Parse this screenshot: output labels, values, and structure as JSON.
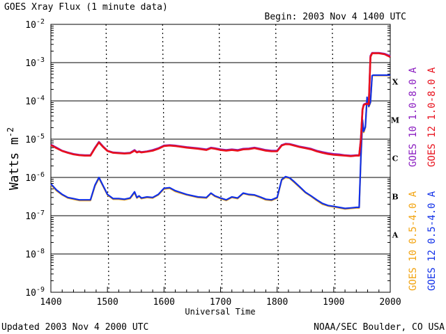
{
  "chart_data": {
    "type": "line",
    "title": "GOES Xray Flux (1 minute data)",
    "begin_label": "Begin: 2003 Nov 4 1400 UTC",
    "xlabel": "Universal Time",
    "ylabel": "Watts m",
    "ylabel_sup": "-2",
    "footer_left": "Updated 2003 Nov  4 2000 UTC",
    "footer_right": "NOAA/SEC Boulder, CO USA",
    "y_scale": "log",
    "ylim": [
      1e-09,
      0.01
    ],
    "xlim": [
      1400,
      2000
    ],
    "x_ticks": [
      "1400",
      "1500",
      "1600",
      "1700",
      "1800",
      "1900",
      "2000"
    ],
    "y_ticks": [
      {
        "base": "10",
        "exp": "-9"
      },
      {
        "base": "10",
        "exp": "-8"
      },
      {
        "base": "10",
        "exp": "-7"
      },
      {
        "base": "10",
        "exp": "-6"
      },
      {
        "base": "10",
        "exp": "-5"
      },
      {
        "base": "10",
        "exp": "-4"
      },
      {
        "base": "10",
        "exp": "-3"
      },
      {
        "base": "10",
        "exp": "-2"
      }
    ],
    "flare_classes": [
      "A",
      "B",
      "C",
      "M",
      "X"
    ],
    "grid": "horizontal lines at each decade; dashed vertical hour markers",
    "legend_placement": "right side, vertical",
    "series": [
      {
        "name": "GOES 10 0.5-4.0 A",
        "color": "#f2a30f",
        "x": [
          1400,
          1410,
          1420,
          1430,
          1440,
          1450,
          1460,
          1470,
          1478,
          1485,
          1492,
          1500,
          1510,
          1520,
          1530,
          1540,
          1548,
          1552,
          1556,
          1560,
          1570,
          1580,
          1590,
          1600,
          1610,
          1620,
          1640,
          1660,
          1675,
          1683,
          1690,
          1700,
          1710,
          1720,
          1730,
          1740,
          1750,
          1760,
          1770,
          1780,
          1790,
          1800,
          1808,
          1815,
          1822,
          1830,
          1840,
          1850,
          1860,
          1870,
          1880,
          1890,
          1900,
          1910,
          1920,
          1930,
          1940,
          1945,
          1948,
          1951,
          1953,
          1956,
          1959,
          1962,
          1965,
          1968,
          1970,
          1975,
          1980,
          1990,
          2000
        ],
        "values": [
          6.5e-07,
          4.5e-07,
          3.5e-07,
          2.9e-07,
          2.7e-07,
          2.5e-07,
          2.5e-07,
          2.5e-07,
          6e-07,
          9.5e-07,
          6e-07,
          3.5e-07,
          2.7e-07,
          2.7e-07,
          2.6e-07,
          2.8e-07,
          4e-07,
          2.9e-07,
          3.2e-07,
          2.8e-07,
          3e-07,
          2.9e-07,
          3.5e-07,
          5e-07,
          5.2e-07,
          4.3e-07,
          3.5e-07,
          3e-07,
          2.9e-07,
          3.8e-07,
          3.2e-07,
          2.8e-07,
          2.5e-07,
          3e-07,
          2.8e-07,
          3.8e-07,
          3.5e-07,
          3.4e-07,
          3e-07,
          2.6e-07,
          2.5e-07,
          2.9e-07,
          8.5e-07,
          1e-06,
          9.5e-07,
          7.5e-07,
          5.5e-07,
          4e-07,
          3.2e-07,
          2.5e-07,
          2e-07,
          1.8e-07,
          1.7e-07,
          1.6e-07,
          1.5e-07,
          1.55e-07,
          1.6e-07,
          1.6e-07,
          3e-06,
          3e-05,
          1.5e-05,
          2e-05,
          0.00012,
          7e-05,
          9e-05,
          0.00045,
          0.00046,
          0.00046,
          0.00046,
          0.00046,
          0.00046
        ]
      },
      {
        "name": "GOES 12 0.5-4.0 A",
        "color": "#1030e8",
        "x": [
          1400,
          1410,
          1420,
          1430,
          1440,
          1450,
          1460,
          1470,
          1478,
          1485,
          1492,
          1500,
          1510,
          1520,
          1530,
          1540,
          1548,
          1552,
          1556,
          1560,
          1570,
          1580,
          1590,
          1600,
          1610,
          1620,
          1640,
          1660,
          1675,
          1683,
          1690,
          1700,
          1710,
          1720,
          1730,
          1740,
          1750,
          1760,
          1770,
          1780,
          1790,
          1800,
          1808,
          1815,
          1822,
          1830,
          1840,
          1850,
          1860,
          1870,
          1880,
          1890,
          1900,
          1910,
          1920,
          1930,
          1940,
          1945,
          1948,
          1951,
          1953,
          1956,
          1959,
          1962,
          1965,
          1968,
          1970,
          1975,
          1980,
          1990,
          2000
        ],
        "values": [
          6.8e-07,
          4.7e-07,
          3.6e-07,
          3e-07,
          2.8e-07,
          2.6e-07,
          2.6e-07,
          2.6e-07,
          6.3e-07,
          1e-06,
          6.2e-07,
          3.6e-07,
          2.8e-07,
          2.8e-07,
          2.7e-07,
          2.9e-07,
          4.2e-07,
          3e-07,
          3.3e-07,
          2.9e-07,
          3.1e-07,
          3e-07,
          3.6e-07,
          5.2e-07,
          5.4e-07,
          4.5e-07,
          3.6e-07,
          3.1e-07,
          3e-07,
          3.9e-07,
          3.3e-07,
          2.9e-07,
          2.6e-07,
          3.1e-07,
          2.9e-07,
          3.9e-07,
          3.6e-07,
          3.5e-07,
          3.1e-07,
          2.7e-07,
          2.6e-07,
          3e-07,
          8.8e-07,
          1.05e-06,
          9.8e-07,
          7.8e-07,
          5.7e-07,
          4.1e-07,
          3.3e-07,
          2.6e-07,
          2.1e-07,
          1.85e-07,
          1.75e-07,
          1.65e-07,
          1.55e-07,
          1.6e-07,
          1.65e-07,
          1.65e-07,
          3.2e-06,
          3.2e-05,
          1.6e-05,
          2.1e-05,
          0.000125,
          7.2e-05,
          9.2e-05,
          0.00046,
          0.00047,
          0.00047,
          0.00047,
          0.00047,
          0.00047
        ]
      },
      {
        "name": "GOES 10 1.0-8.0 A",
        "color": "#8a1cc0",
        "x": [
          1400,
          1410,
          1420,
          1430,
          1440,
          1450,
          1460,
          1470,
          1478,
          1485,
          1492,
          1500,
          1510,
          1520,
          1530,
          1540,
          1548,
          1552,
          1556,
          1560,
          1570,
          1580,
          1590,
          1600,
          1610,
          1620,
          1640,
          1660,
          1675,
          1683,
          1690,
          1700,
          1710,
          1720,
          1730,
          1740,
          1750,
          1760,
          1770,
          1780,
          1790,
          1800,
          1808,
          1815,
          1822,
          1830,
          1840,
          1850,
          1860,
          1870,
          1880,
          1890,
          1900,
          1910,
          1920,
          1930,
          1940,
          1945,
          1948,
          1951,
          1953,
          1956,
          1959,
          1962,
          1965,
          1968,
          1970,
          1975,
          1980,
          1990,
          2000
        ],
        "values": [
          7.2e-06,
          6e-06,
          5e-06,
          4.5e-06,
          4.1e-06,
          3.9e-06,
          3.8e-06,
          3.8e-06,
          6e-06,
          8.5e-06,
          6.5e-06,
          5e-06,
          4.5e-06,
          4.4e-06,
          4.3e-06,
          4.4e-06,
          5.2e-06,
          4.6e-06,
          4.8e-06,
          4.6e-06,
          4.8e-06,
          5.2e-06,
          5.8e-06,
          6.8e-06,
          7e-06,
          6.8e-06,
          6.2e-06,
          5.8e-06,
          5.4e-06,
          6e-06,
          5.8e-06,
          5.4e-06,
          5.2e-06,
          5.4e-06,
          5.2e-06,
          5.6e-06,
          5.7e-06,
          6e-06,
          5.6e-06,
          5.2e-06,
          5e-06,
          5e-06,
          7e-06,
          7.6e-06,
          7.5e-06,
          7e-06,
          6.4e-06,
          6e-06,
          5.6e-06,
          5e-06,
          4.6e-06,
          4.3e-06,
          4.1e-06,
          4e-06,
          3.8e-06,
          3.7e-06,
          3.8e-06,
          3.8e-06,
          1e-05,
          6e-05,
          8e-05,
          8.5e-05,
          8.6e-05,
          8.5e-05,
          0.0015,
          0.0018,
          0.0018,
          0.0018,
          0.0018,
          0.0017,
          0.0015
        ]
      },
      {
        "name": "GOES 12 1.0-8.0 A",
        "color": "#e8101c",
        "x": [
          1400,
          1410,
          1420,
          1430,
          1440,
          1450,
          1460,
          1470,
          1478,
          1485,
          1492,
          1500,
          1510,
          1520,
          1530,
          1540,
          1548,
          1552,
          1556,
          1560,
          1570,
          1580,
          1590,
          1600,
          1610,
          1620,
          1640,
          1660,
          1675,
          1683,
          1690,
          1700,
          1710,
          1720,
          1730,
          1740,
          1750,
          1760,
          1770,
          1780,
          1790,
          1800,
          1808,
          1815,
          1822,
          1830,
          1840,
          1850,
          1860,
          1870,
          1880,
          1890,
          1900,
          1910,
          1920,
          1930,
          1940,
          1945,
          1948,
          1951,
          1953,
          1956,
          1959,
          1962,
          1965,
          1968,
          1970,
          1975,
          1980,
          1990,
          2000
        ],
        "values": [
          7e-06,
          5.8e-06,
          4.9e-06,
          4.4e-06,
          4e-06,
          3.8e-06,
          3.7e-06,
          3.7e-06,
          5.8e-06,
          8.2e-06,
          6.3e-06,
          4.9e-06,
          4.4e-06,
          4.3e-06,
          4.2e-06,
          4.3e-06,
          5e-06,
          4.5e-06,
          4.7e-06,
          4.5e-06,
          4.7e-06,
          5e-06,
          5.6e-06,
          6.6e-06,
          6.8e-06,
          6.6e-06,
          6e-06,
          5.6e-06,
          5.2e-06,
          5.8e-06,
          5.6e-06,
          5.2e-06,
          5e-06,
          5.2e-06,
          5e-06,
          5.4e-06,
          5.5e-06,
          5.8e-06,
          5.4e-06,
          5e-06,
          4.8e-06,
          4.8e-06,
          6.8e-06,
          7.4e-06,
          7.3e-06,
          6.8e-06,
          6.2e-06,
          5.8e-06,
          5.4e-06,
          4.8e-06,
          4.4e-06,
          4.1e-06,
          3.9e-06,
          3.8e-06,
          3.7e-06,
          3.6e-06,
          3.7e-06,
          3.7e-06,
          9.5e-06,
          5.8e-05,
          7.8e-05,
          8.2e-05,
          8.4e-05,
          8.2e-05,
          0.0014,
          0.00175,
          0.00175,
          0.00175,
          0.00175,
          0.00165,
          0.0014
        ]
      }
    ]
  }
}
